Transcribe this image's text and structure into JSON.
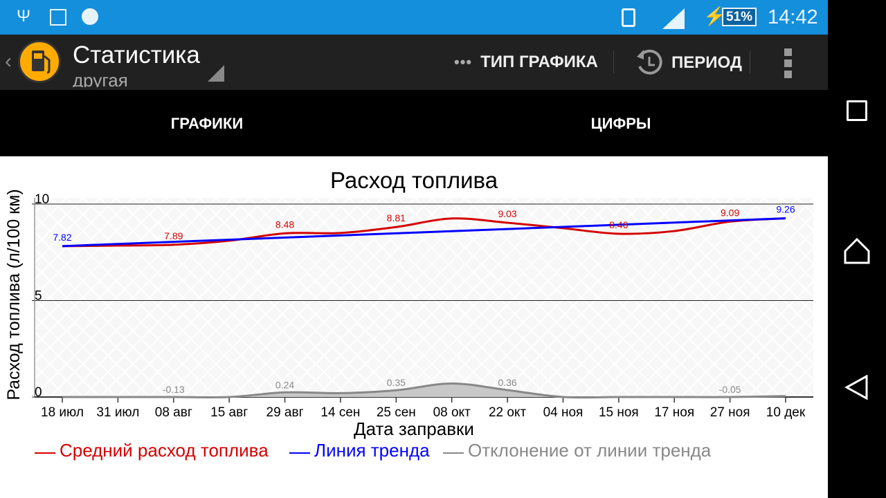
{
  "status_bar": {
    "icons": [
      "usb-icon",
      "image-icon",
      "disc-alert-icon",
      "vibrate-icon",
      "signal-icon",
      "charging-icon"
    ],
    "battery": "51%",
    "time": "14:42"
  },
  "action_bar": {
    "back_icon": "chevron-left-icon",
    "logo_icon": "fuel-pump-icon",
    "title": "Статистика",
    "subtitle": "другая",
    "chart_type_label": "ТИП ГРАФИКА",
    "period_label": "ПЕРИОД"
  },
  "tabs": [
    {
      "label": "ГРАФИКИ",
      "selected": true
    },
    {
      "label": "ЦИФРЫ",
      "selected": false
    }
  ],
  "colors": {
    "accent": "#fbb92c",
    "status_bar": "#148fdb",
    "avg": "#d40000",
    "trend": "#0000ff",
    "deviation": "#888888"
  },
  "chart_data": {
    "type": "line",
    "title": "Расход топлива",
    "xlabel": "Дата заправки",
    "ylabel": "Расход топлива (л/100 км)",
    "ylim": [
      0,
      10
    ],
    "yticks": [
      "0",
      "5",
      "10"
    ],
    "grid": true,
    "legend_placement": "bottom",
    "categories": [
      "18 июл",
      "31 июл",
      "08 авг",
      "15 авг",
      "29 авг",
      "14 сен",
      "25 сен",
      "08 окт",
      "22 окт",
      "04 ноя",
      "15 ноя",
      "17 ноя",
      "27 ноя",
      "10 дек"
    ],
    "series": [
      {
        "name": "Средний расход топлива",
        "color": "#d40000",
        "values": [
          7.82,
          7.85,
          7.89,
          8.1,
          8.48,
          8.5,
          8.81,
          9.25,
          9.03,
          8.75,
          8.46,
          8.6,
          9.09,
          9.26
        ],
        "labels": {
          "2": "7.89",
          "4": "8.48",
          "6": "8.81",
          "8": "9.03",
          "10": "8.46",
          "12": "9.09"
        }
      },
      {
        "name": "Линия тренда",
        "color": "#0000ff",
        "values": [
          7.82,
          7.93,
          8.04,
          8.15,
          8.26,
          8.37,
          8.49,
          8.6,
          8.71,
          8.82,
          8.93,
          9.04,
          9.15,
          9.26
        ],
        "labels": {
          "0": "7.82",
          "13": "9.26"
        }
      },
      {
        "name": "Отклонение от линии тренда",
        "color": "#888888",
        "values": [
          0,
          -0.1,
          -0.13,
          0,
          0.24,
          0.2,
          0.35,
          0.7,
          0.36,
          -0.1,
          -0.45,
          -0.3,
          -0.05,
          0.05
        ],
        "labels": {
          "2": "-0.13",
          "4": "0.24",
          "6": "0.35",
          "8": "0.36",
          "12": "-0.05"
        }
      }
    ]
  },
  "nav_bar": {
    "icons": [
      "recent-apps-icon",
      "home-icon",
      "back-icon"
    ]
  }
}
